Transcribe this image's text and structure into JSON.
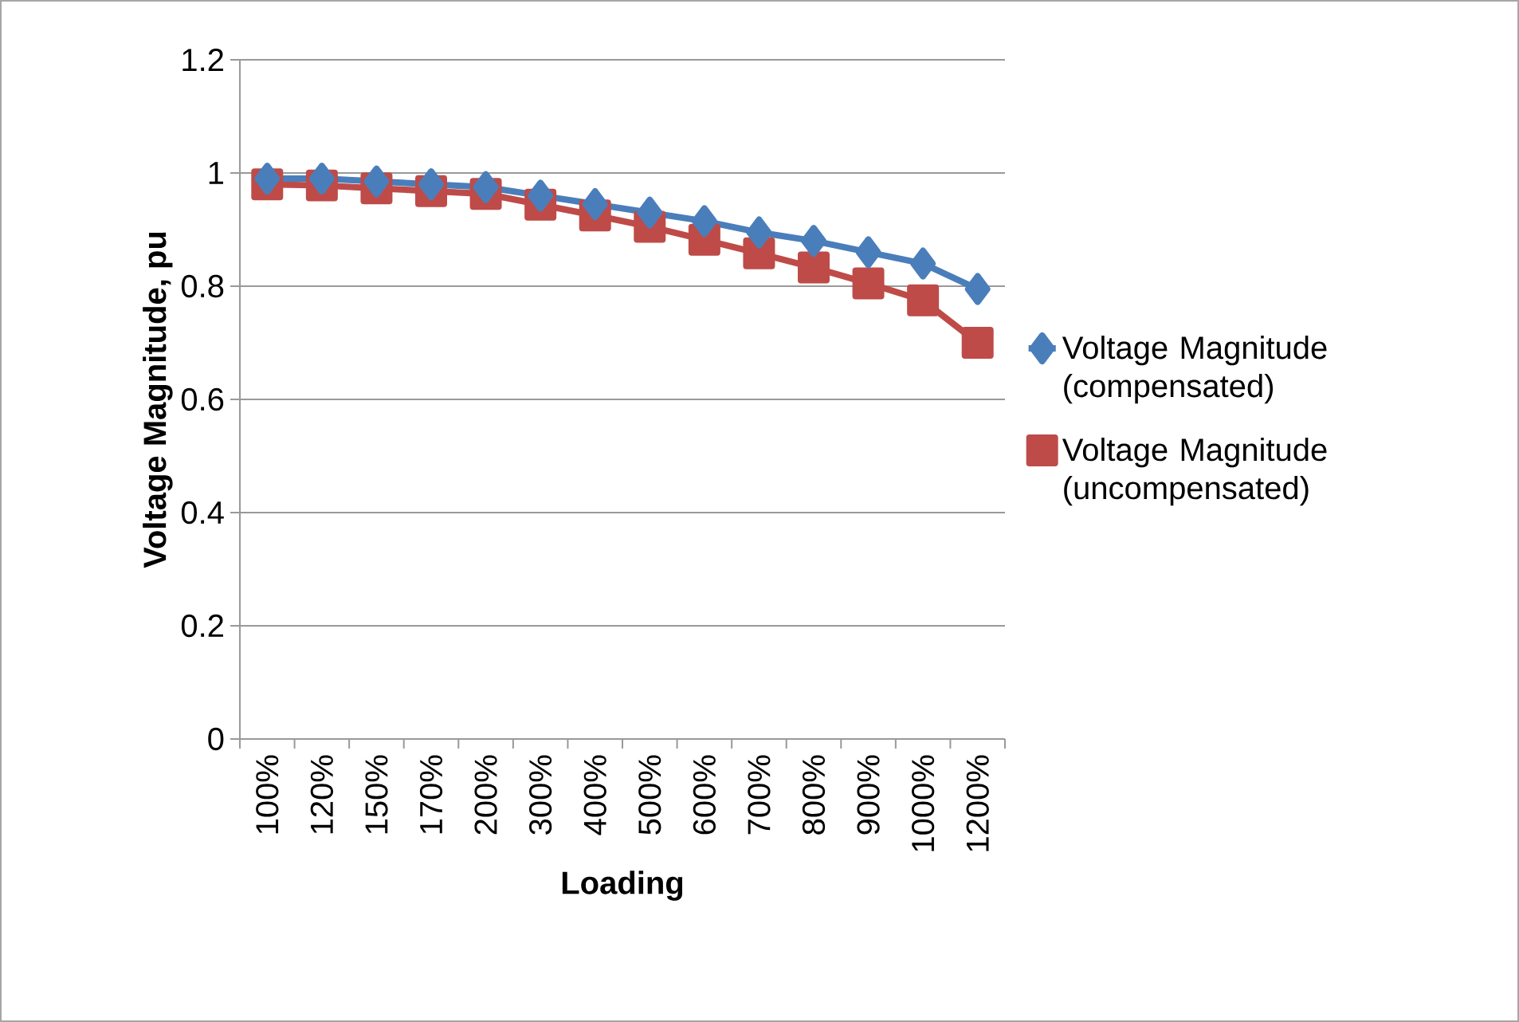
{
  "chart_data": {
    "type": "line",
    "xlabel": "Loading",
    "ylabel": "Voltage Magnitude, pu",
    "categories": [
      "100%",
      "120%",
      "150%",
      "170%",
      "200%",
      "300%",
      "400%",
      "500%",
      "600%",
      "700%",
      "800%",
      "900%",
      "1000%",
      "1200%"
    ],
    "series": [
      {
        "name": "Voltage Magnitude (compensated)",
        "color": "#4a7ebb",
        "marker": "diamond",
        "values": [
          0.99,
          0.99,
          0.985,
          0.98,
          0.975,
          0.96,
          0.945,
          0.93,
          0.915,
          0.895,
          0.88,
          0.86,
          0.84,
          0.795
        ]
      },
      {
        "name": "Voltage Magnitude (uncompensated)",
        "color": "#be4b48",
        "marker": "square",
        "values": [
          0.98,
          0.978,
          0.973,
          0.968,
          0.963,
          0.944,
          0.925,
          0.905,
          0.882,
          0.858,
          0.833,
          0.805,
          0.775,
          0.7
        ]
      }
    ],
    "ylim": [
      0,
      1.2
    ],
    "yticks": [
      0,
      0.2,
      0.4,
      0.6,
      0.8,
      1,
      1.2
    ],
    "grid": "y",
    "legend": "right",
    "line_style": "solid"
  }
}
